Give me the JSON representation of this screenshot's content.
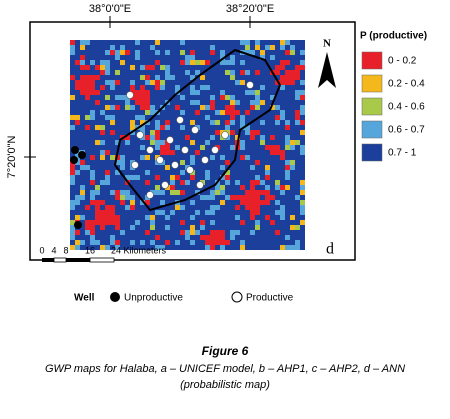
{
  "map": {
    "top_labels": [
      "38°0'0\"E",
      "38°20'0\"E"
    ],
    "left_label": "7°20'0\"N",
    "north": "N",
    "panel_letter": "d",
    "legend": {
      "title": "P (productive)",
      "items": [
        {
          "label": "0 - 0.2",
          "color": "#e8202a"
        },
        {
          "label": "0.2 - 0.4",
          "color": "#f5b81c"
        },
        {
          "label": "0.4 - 0.6",
          "color": "#a9c94a"
        },
        {
          "label": "0.6 - 0.7",
          "color": "#56a6dc"
        },
        {
          "label": "0.7 - 1",
          "color": "#1c3f9c"
        }
      ]
    },
    "scale": {
      "ticks": [
        "0",
        "4",
        "8",
        "16"
      ],
      "unit": "24 Kilometers"
    },
    "wells": {
      "title": "Well",
      "unproductive": "Unproductive",
      "productive": "Productive"
    }
  },
  "caption": {
    "figure": "Figure 6",
    "line1": "GWP maps for Halaba, a – UNICEF model, b – AHP1, c – AHP2, d – ANN",
    "line2": "(probabilistic map)"
  }
}
